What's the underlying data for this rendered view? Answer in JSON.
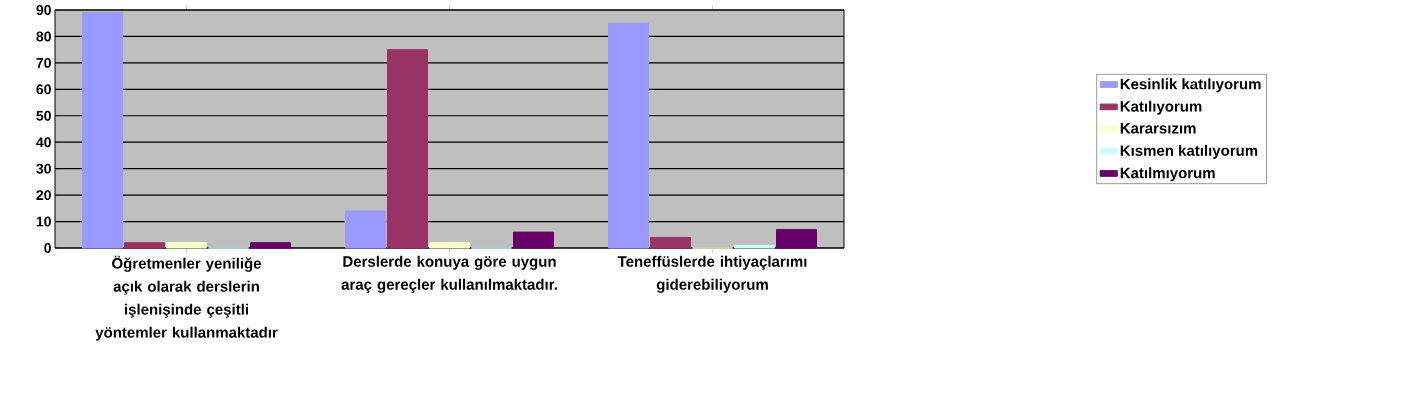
{
  "chart_data": {
    "type": "bar",
    "categories": [
      "Öğretmenler yeniliğe açık olarak derslerin işlenişinde çeşitli yöntemler kullanmaktadır",
      "Derslerde konuya göre uygun araç gereçler kullanılmaktadır.",
      "Teneffüslerde ihtiyaçlarımı giderebiliyorum"
    ],
    "series": [
      {
        "name": "Kesinlik katılıyorum",
        "color": "#9999ff",
        "values": [
          89,
          14,
          85
        ]
      },
      {
        "name": "Katılıyorum",
        "color": "#993366",
        "values": [
          2,
          75,
          4
        ]
      },
      {
        "name": "Kararsızım",
        "color": "#ffffcc",
        "values": [
          2,
          2,
          0
        ]
      },
      {
        "name": "Kısmen katılıyorum",
        "color": "#ccffff",
        "values": [
          0,
          0,
          1
        ]
      },
      {
        "name": "Katılmıyorum",
        "color": "#660066",
        "values": [
          2,
          6,
          7
        ]
      }
    ],
    "ylim": [
      0,
      90
    ],
    "yticks": [
      0,
      10,
      20,
      30,
      40,
      50,
      60,
      70,
      80,
      90
    ],
    "grid": "y",
    "legend": "right"
  }
}
